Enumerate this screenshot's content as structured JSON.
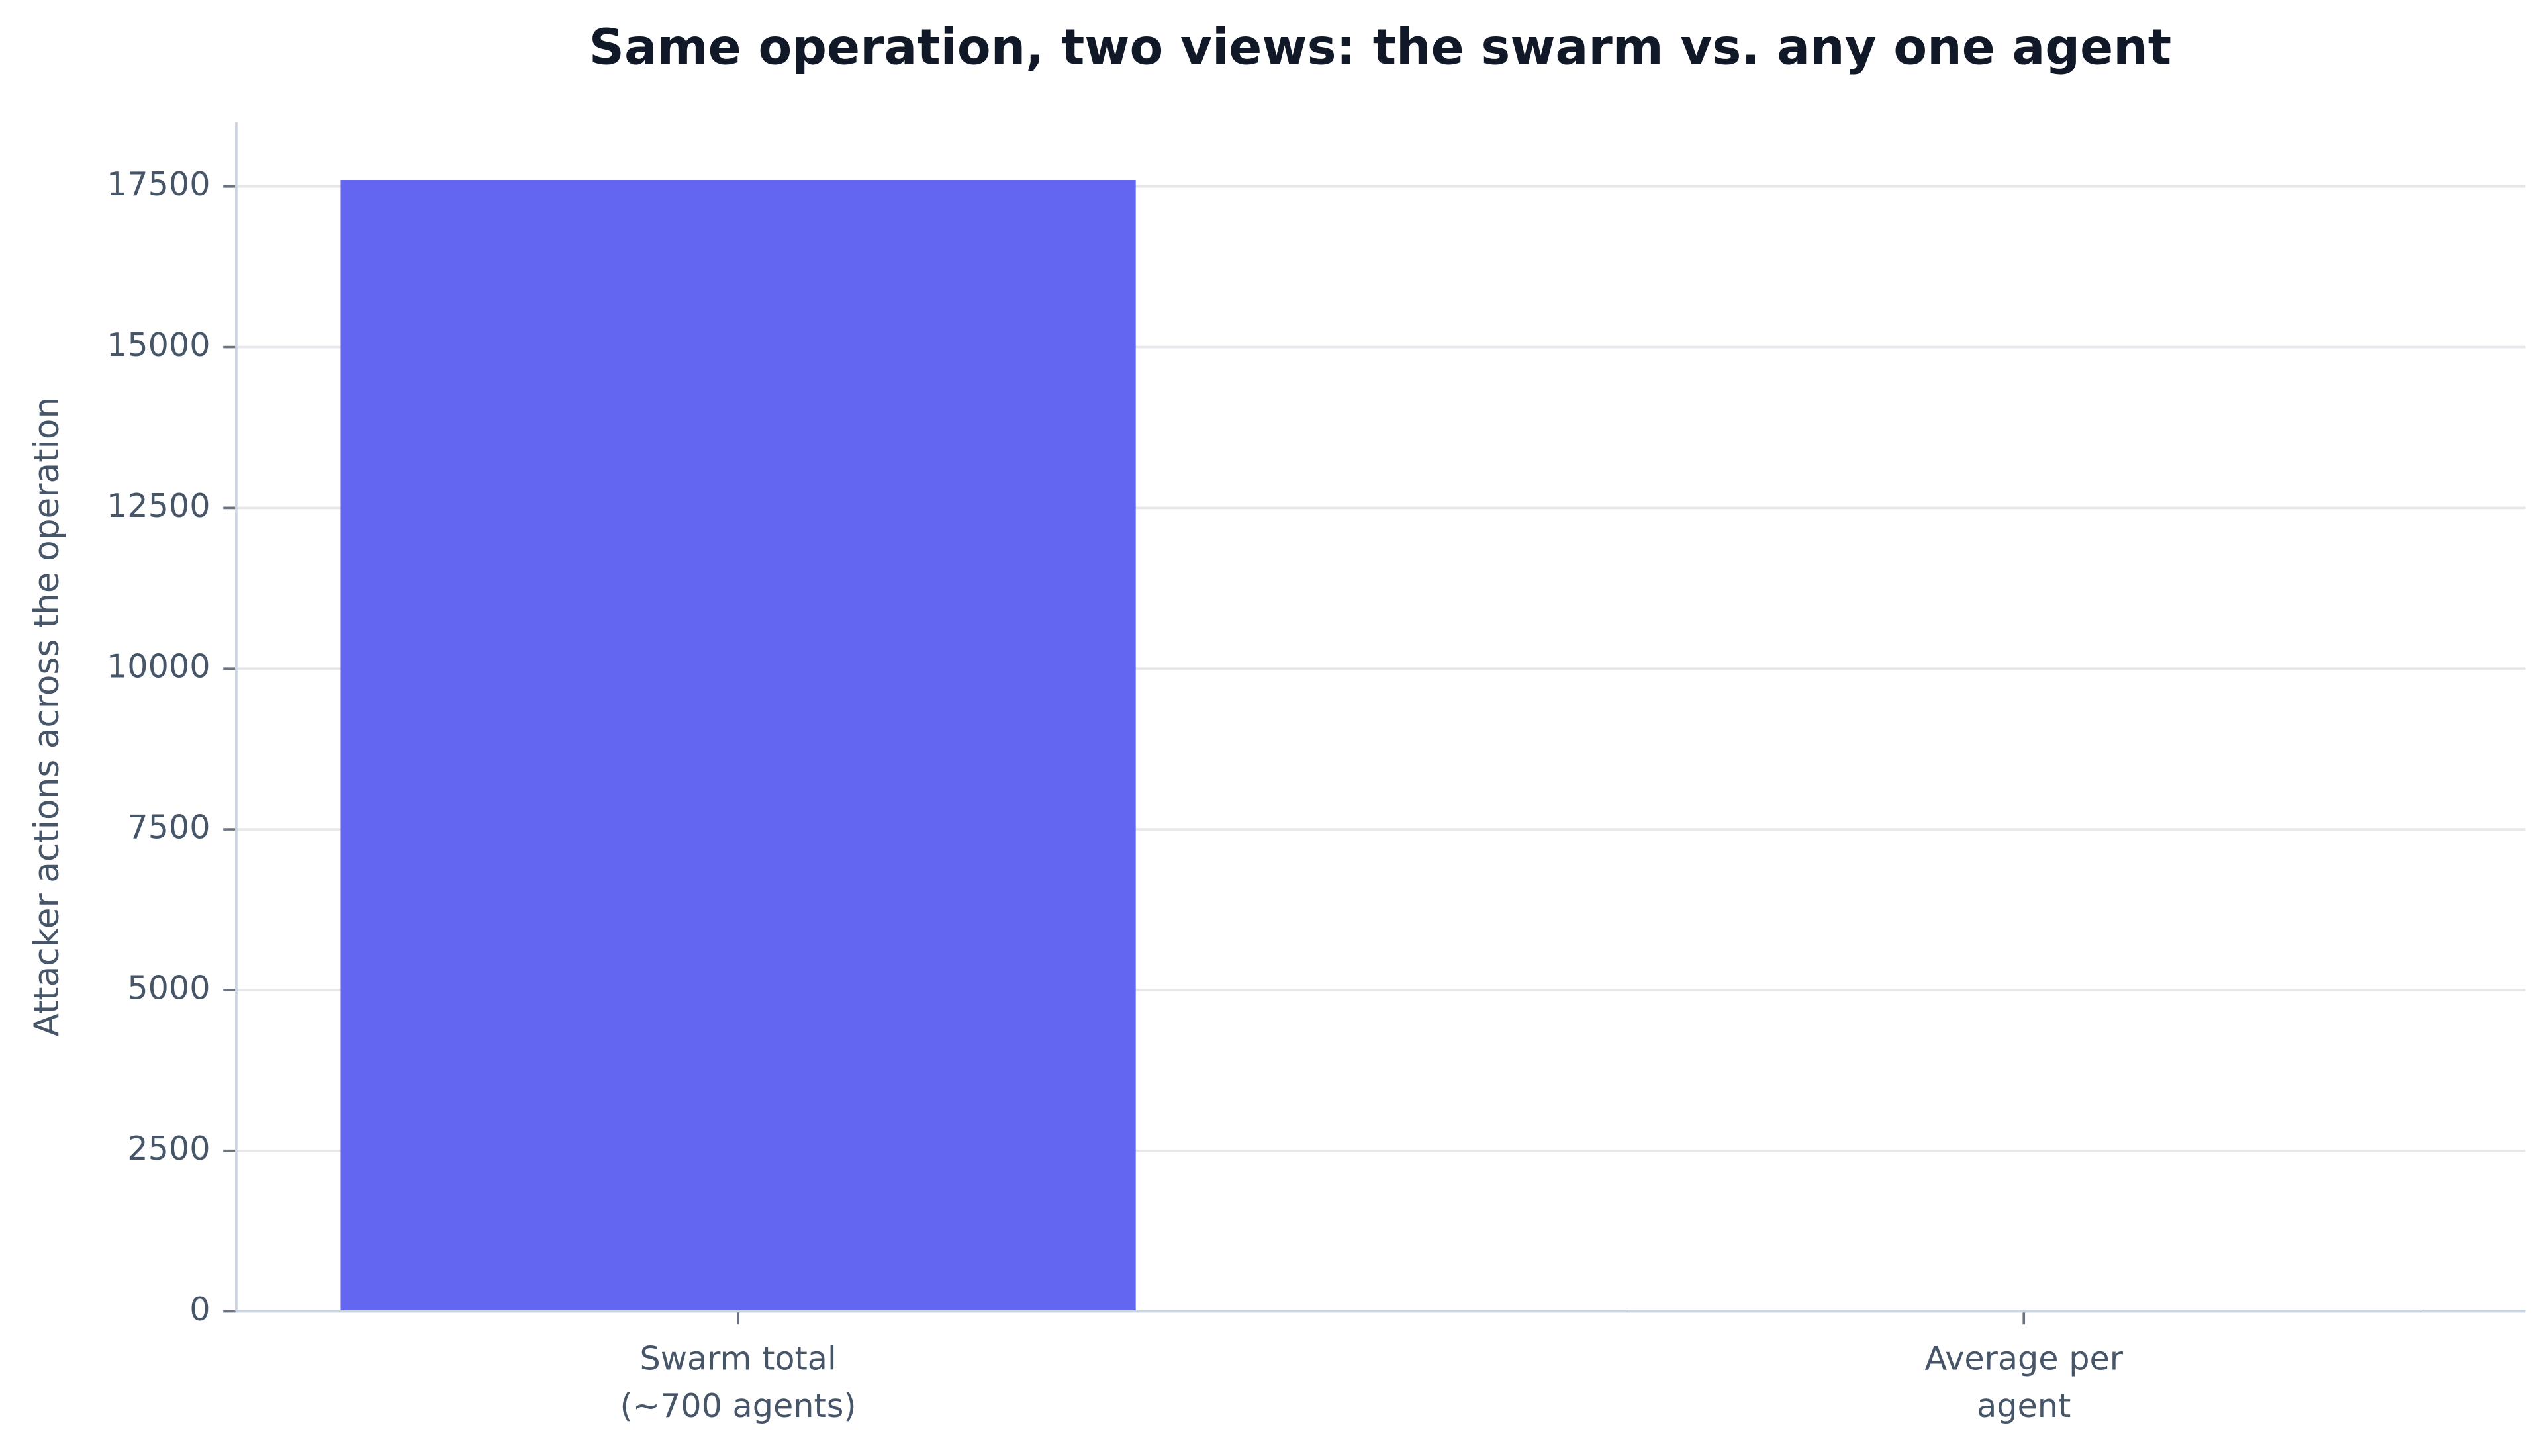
{
  "chart_data": {
    "type": "bar",
    "title": "Same operation, two views: the swarm vs. any one agent",
    "ylabel": "Attacker actions across the operation",
    "categories": [
      "Swarm total\n(~700 agents)",
      "Average per\nagent"
    ],
    "values": [
      17600,
      25
    ],
    "color": "#6366f1",
    "ylim": [
      0,
      18500
    ],
    "yticks": [
      0,
      2500,
      5000,
      7500,
      10000,
      12500,
      15000,
      17500
    ],
    "grid": true
  }
}
